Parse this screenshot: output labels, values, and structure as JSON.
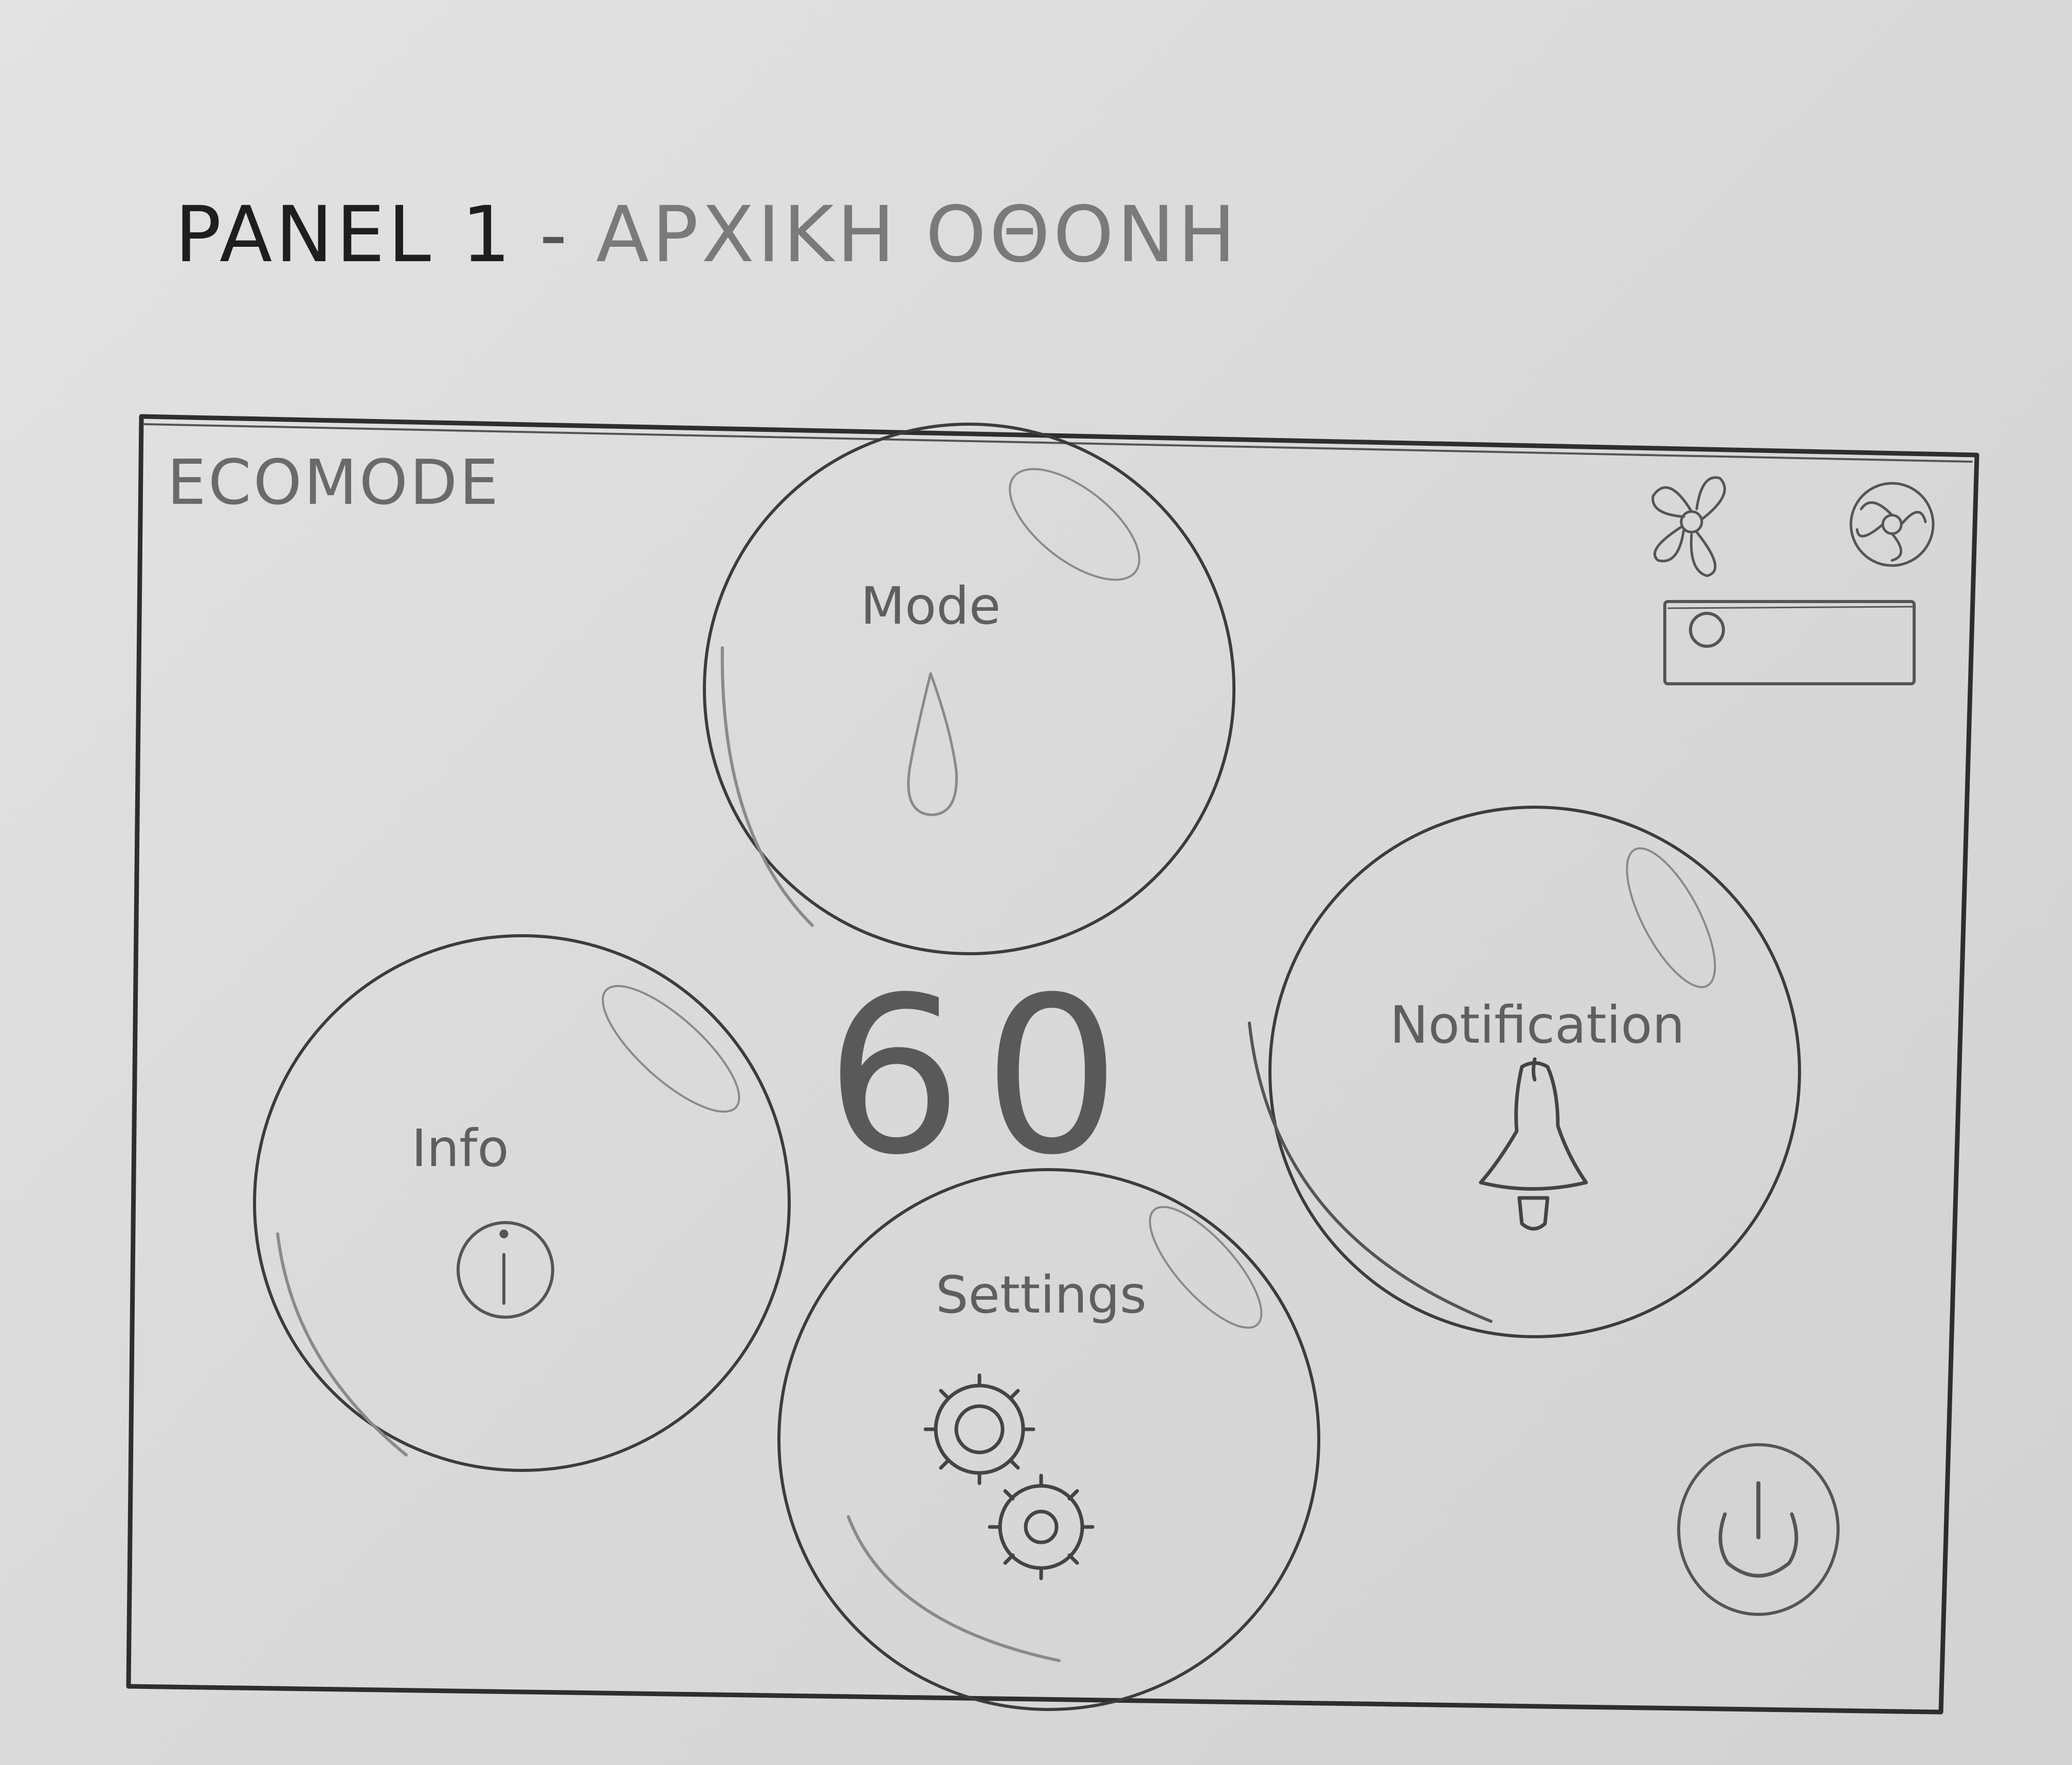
{
  "sheet": {
    "panel_label": "PANEL 1",
    "separator": "-",
    "screen_name": "ΑΡΧΙΚΗ ΟΘΟΝΗ"
  },
  "screen": {
    "mode_label": "ECOMODE",
    "counter_value": "60",
    "bubbles": {
      "mode": {
        "label": "Mode",
        "icon": "drop-icon"
      },
      "info": {
        "label": "Info",
        "icon": "info-icon"
      },
      "settings": {
        "label": "Settings",
        "icon": "gears-icon"
      },
      "notification": {
        "label": "Notification",
        "icon": "bell-icon"
      }
    },
    "fan_controls": {
      "icons": [
        "fan-low-icon",
        "fan-high-icon"
      ],
      "slider_value": 0
    },
    "power": {
      "icon": "power-icon"
    }
  },
  "colors": {
    "paper": "#dcdcdc",
    "pencil": "#3a3a3a",
    "pencil_light": "#8a8a8a"
  }
}
